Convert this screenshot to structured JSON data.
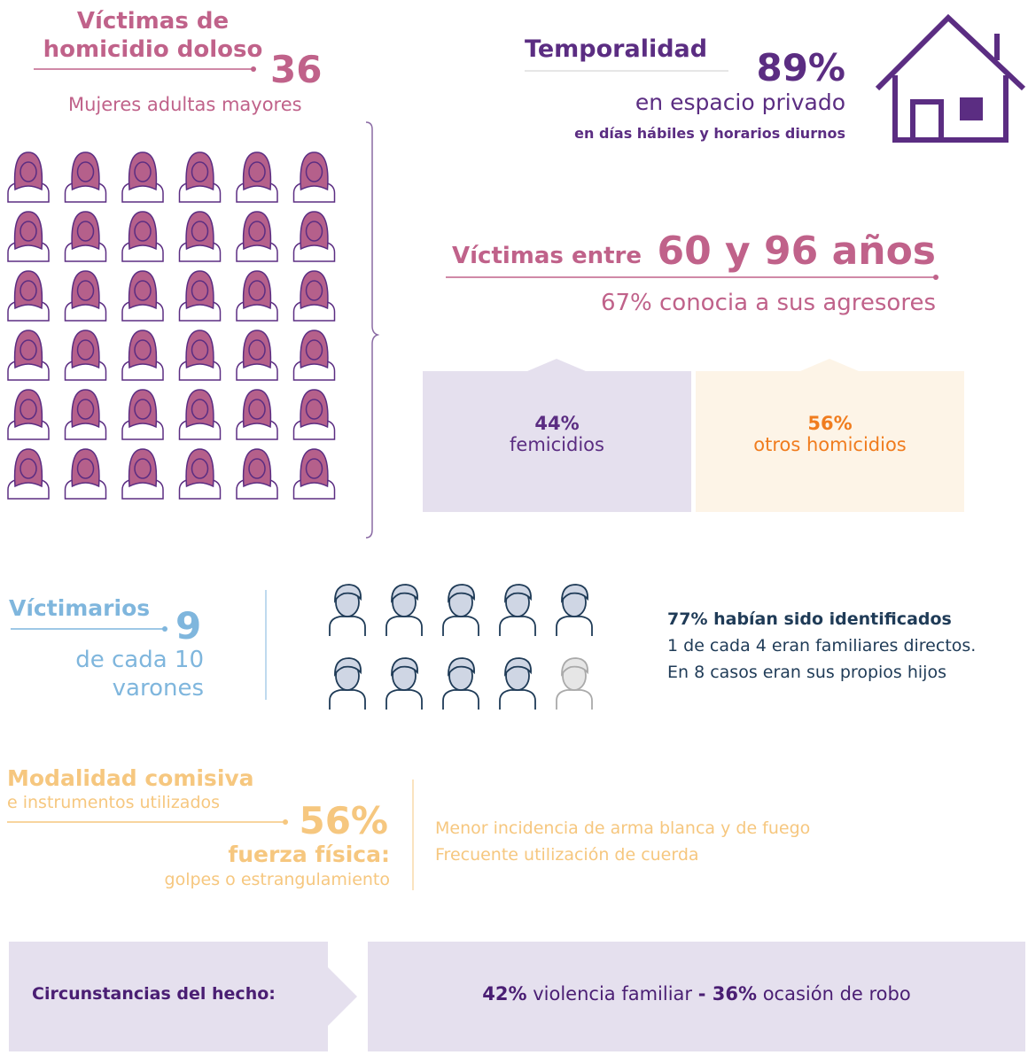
{
  "victims": {
    "title_line1": "Víctimas de",
    "title_line2": "homicidio doloso",
    "count": 36,
    "subtitle": "Mujeres adultas mayores"
  },
  "temporality": {
    "title": "Temporalidad",
    "percent": "89%",
    "place": "en espacio privado",
    "detail": "en días hábiles y horarios diurnos"
  },
  "age": {
    "label": "Víctimas entre",
    "range": "60 y 96 años",
    "known": "67% conocia a sus agresores"
  },
  "types": [
    {
      "percent": "44%",
      "label": "femicidios"
    },
    {
      "percent": "56%",
      "label": "otros homicidios"
    }
  ],
  "offenders": {
    "title": "Víctimarios",
    "count": 9,
    "prefix": "de cada",
    "total": 10,
    "label": "varones",
    "identified": "77% habían sido identificados",
    "line1": "1 de cada 4 eran familiares directos.",
    "line2": "En 8 casos eran sus propios hijos"
  },
  "modality": {
    "title": "Modalidad comisiva",
    "subtitle": "e instrumentos utilizados",
    "percent": "56%",
    "main": "fuerza física:",
    "detail": "golpes o estrangulamiento",
    "note1": "Menor incidencia de arma blanca y de fuego",
    "note2": "Frecuente utilización de cuerda"
  },
  "circumstances": {
    "title": "Circunstancias del hecho:",
    "parts": [
      "42%",
      " violencia familiar ",
      "- 36%",
      " ocasión de robo"
    ]
  }
}
